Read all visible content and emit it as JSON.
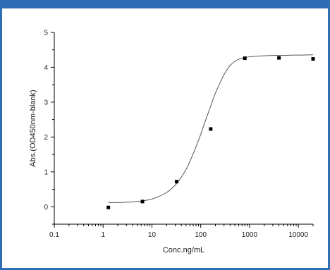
{
  "colors": {
    "frame": "#2f6db5",
    "axis": "#000000",
    "curve": "#555555",
    "points": "#000000"
  },
  "chart_data": {
    "type": "scatter",
    "title": "",
    "xlabel": "Conc.ng/mL",
    "ylabel": "Abs.(OD450nm-blank)",
    "x_scale": "log",
    "xlim": [
      0.1,
      20000
    ],
    "ylim": [
      -0.5,
      5
    ],
    "x_ticks": [
      0.1,
      1,
      10,
      100,
      1000,
      10000
    ],
    "x_tick_labels": [
      "0.1",
      "1",
      "10",
      "100",
      "1000",
      "10000"
    ],
    "y_ticks": [
      0,
      1,
      2,
      3,
      4,
      5
    ],
    "y_tick_labels": [
      "0",
      "1",
      "2",
      "3",
      "4",
      "5"
    ],
    "grid": false,
    "series": [
      {
        "kind": "points",
        "marker": "square",
        "x": [
          1.28,
          6.4,
          32,
          160,
          800,
          4000,
          20000
        ],
        "y": [
          -0.02,
          0.15,
          0.72,
          2.23,
          4.26,
          4.27,
          4.24
        ]
      },
      {
        "kind": "fit-curve",
        "x": [
          1.28,
          2,
          3,
          5,
          8,
          12,
          20,
          30,
          40,
          50,
          60,
          80,
          100,
          120,
          150,
          200,
          250,
          300,
          400,
          500,
          600,
          800,
          1000,
          1500,
          2000,
          3000,
          5000,
          8000,
          12000,
          20000
        ],
        "y": [
          0.12,
          0.12,
          0.13,
          0.15,
          0.19,
          0.26,
          0.41,
          0.62,
          0.85,
          1.07,
          1.3,
          1.72,
          2.08,
          2.4,
          2.78,
          3.26,
          3.56,
          3.79,
          4.05,
          4.17,
          4.23,
          4.28,
          4.3,
          4.32,
          4.33,
          4.34,
          4.34,
          4.35,
          4.35,
          4.36
        ]
      }
    ]
  }
}
